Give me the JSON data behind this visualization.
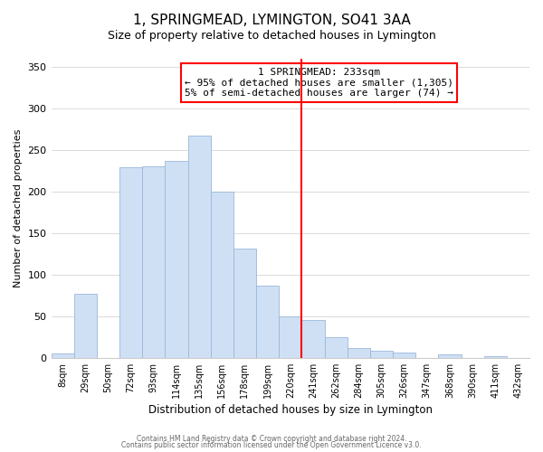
{
  "title": "1, SPRINGMEAD, LYMINGTON, SO41 3AA",
  "subtitle": "Size of property relative to detached houses in Lymington",
  "xlabel": "Distribution of detached houses by size in Lymington",
  "ylabel": "Number of detached properties",
  "bin_labels": [
    "8sqm",
    "29sqm",
    "50sqm",
    "72sqm",
    "93sqm",
    "114sqm",
    "135sqm",
    "156sqm",
    "178sqm",
    "199sqm",
    "220sqm",
    "241sqm",
    "262sqm",
    "284sqm",
    "305sqm",
    "326sqm",
    "347sqm",
    "368sqm",
    "390sqm",
    "411sqm",
    "432sqm"
  ],
  "bar_values": [
    5,
    77,
    0,
    229,
    231,
    237,
    268,
    200,
    131,
    87,
    50,
    46,
    25,
    12,
    9,
    6,
    0,
    4,
    0,
    2,
    0
  ],
  "bar_color": "#cfe0f5",
  "bar_edge_color": "#9ab8d8",
  "vline_x": 10.5,
  "vline_color": "red",
  "annotation_title": "1 SPRINGMEAD: 233sqm",
  "annotation_line1": "← 95% of detached houses are smaller (1,305)",
  "annotation_line2": "5% of semi-detached houses are larger (74) →",
  "ylim": [
    0,
    360
  ],
  "footer1": "Contains HM Land Registry data © Crown copyright and database right 2024.",
  "footer2": "Contains public sector information licensed under the Open Government Licence v3.0."
}
